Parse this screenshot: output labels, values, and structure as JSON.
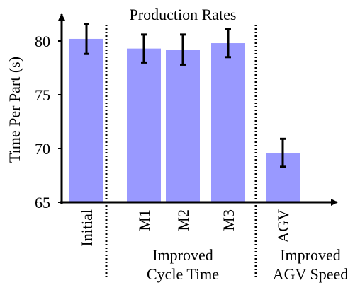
{
  "chart_data": {
    "type": "bar",
    "title": "Production Rates",
    "ylabel": "Time Per Part (s)",
    "xlabel": "",
    "ylim": [
      65,
      82.5
    ],
    "yticks": [
      65,
      70,
      75,
      80
    ],
    "categories": [
      "Initial",
      "M1",
      "M2",
      "M3",
      "AGV"
    ],
    "values": [
      80.2,
      79.3,
      79.2,
      79.8,
      69.6
    ],
    "errors": [
      1.4,
      1.3,
      1.4,
      1.3,
      1.3
    ],
    "bar_color": "#9999ff",
    "groups": [
      {
        "label_lines": [
          "Improved",
          "Cycle Time"
        ]
      },
      {
        "label_lines": [
          "Improved",
          "AGV Speed"
        ]
      }
    ],
    "grid": false,
    "legend": "none"
  }
}
